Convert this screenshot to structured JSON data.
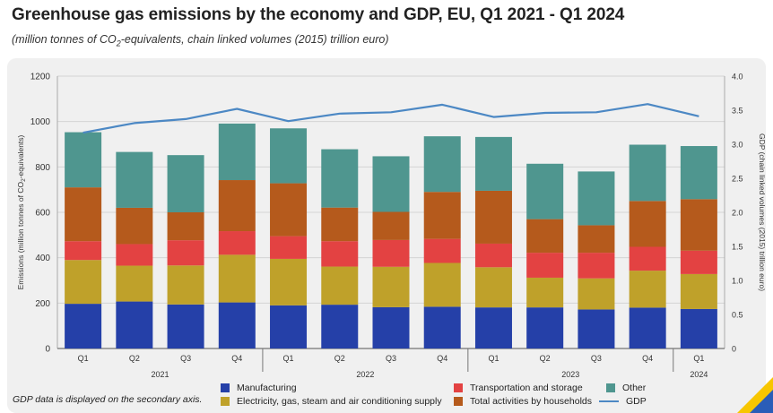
{
  "header": {
    "title": "Greenhouse gas emissions by the economy and GDP, EU, Q1 2021 - Q1 2024",
    "subtitle_pre": "(million tonnes of CO",
    "subtitle_sub": "2",
    "subtitle_post": "-equivalents, chain linked volumes (2015) trillion euro)"
  },
  "footer": {
    "note": "GDP data is displayed on the secondary axis."
  },
  "colors": {
    "manufacturing": "#2540a8",
    "electricity": "#bfa12a",
    "transport": "#e34242",
    "households": "#b55a1c",
    "other": "#4f968f",
    "gdp": "#4c88c4"
  },
  "legend": [
    {
      "key": "manufacturing",
      "label": "Manufacturing",
      "type": "swatch"
    },
    {
      "key": "electricity",
      "label": "Electricity, gas, steam and air conditioning supply",
      "type": "swatch"
    },
    {
      "key": "transport",
      "label": "Transportation and storage",
      "type": "swatch"
    },
    {
      "key": "households",
      "label": "Total activities by households",
      "type": "swatch"
    },
    {
      "key": "other",
      "label": "Other",
      "type": "swatch"
    },
    {
      "key": "gdp",
      "label": "GDP",
      "type": "line"
    }
  ],
  "chart_data": {
    "type": "bar",
    "stacked": true,
    "title": "Greenhouse gas emissions by the economy and GDP, EU, Q1 2021 - Q1 2024",
    "ylabel_pre": "Emissions (million tonnes of CO",
    "ylabel_sub": "2",
    "ylabel_post": "-equivalents)",
    "y2label": "GDP (chain linked volumes (2015) trillion euro)",
    "ylim": [
      0,
      1200
    ],
    "yticks": [
      0,
      200,
      400,
      600,
      800,
      1000,
      1200
    ],
    "y2lim": [
      0,
      4.0
    ],
    "y2ticks": [
      "0",
      "0.5",
      "1.0",
      "1.5",
      "2.0",
      "2.5",
      "3.0",
      "3.5",
      "4.0"
    ],
    "grid": true,
    "categories": [
      "Q1",
      "Q2",
      "Q3",
      "Q4",
      "Q1",
      "Q2",
      "Q3",
      "Q4",
      "Q1",
      "Q2",
      "Q3",
      "Q4",
      "Q1"
    ],
    "years": [
      {
        "label": "2021",
        "count": 4
      },
      {
        "label": "2022",
        "count": 4
      },
      {
        "label": "2023",
        "count": 4
      },
      {
        "label": "2024",
        "count": 1
      }
    ],
    "series": [
      {
        "key": "manufacturing",
        "name": "Manufacturing",
        "values": [
          197,
          207,
          194,
          203,
          190,
          193,
          182,
          184,
          181,
          181,
          172,
          180,
          174
        ]
      },
      {
        "key": "electricity",
        "name": "Electricity, gas, steam and air conditioning supply",
        "values": [
          193,
          158,
          172,
          210,
          205,
          168,
          178,
          193,
          177,
          131,
          137,
          163,
          154
        ]
      },
      {
        "key": "transport",
        "name": "Transportation and storage",
        "values": [
          83,
          95,
          111,
          104,
          100,
          112,
          118,
          106,
          104,
          110,
          113,
          105,
          103
        ]
      },
      {
        "key": "households",
        "name": "Total activities by households",
        "values": [
          237,
          160,
          123,
          225,
          233,
          148,
          124,
          207,
          233,
          148,
          121,
          202,
          227
        ]
      },
      {
        "key": "other",
        "name": "Other",
        "values": [
          243,
          246,
          252,
          249,
          242,
          257,
          245,
          245,
          237,
          244,
          237,
          248,
          234
        ]
      }
    ],
    "line": {
      "key": "gdp",
      "name": "GDP",
      "axis": "secondary",
      "values": [
        3.17,
        3.31,
        3.37,
        3.52,
        3.34,
        3.45,
        3.47,
        3.58,
        3.4,
        3.46,
        3.47,
        3.59,
        3.41
      ]
    }
  }
}
